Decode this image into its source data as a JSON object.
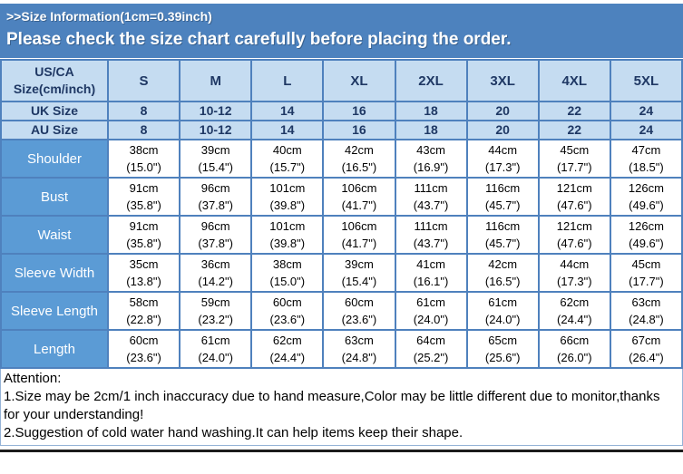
{
  "banner": {
    "warning": "Please check the size chart carefully before placing the order."
  },
  "chart_data": {
    "type": "table",
    "title": ">>Size Information(1cm=0.39inch)",
    "corner_header_lines": [
      "US/CA",
      "Size(cm/inch)"
    ],
    "columns": [
      "S",
      "M",
      "L",
      "XL",
      "2XL",
      "3XL",
      "4XL",
      "5XL"
    ],
    "intl_rows": [
      {
        "label": "UK Size",
        "values": [
          "8",
          "10-12",
          "14",
          "16",
          "18",
          "20",
          "22",
          "24"
        ]
      },
      {
        "label": "AU Size",
        "values": [
          "8",
          "10-12",
          "14",
          "16",
          "18",
          "20",
          "22",
          "24"
        ]
      }
    ],
    "measurement_rows": [
      {
        "label": "Shoulder",
        "cm": [
          "38cm",
          "39cm",
          "40cm",
          "42cm",
          "43cm",
          "44cm",
          "45cm",
          "47cm"
        ],
        "inch": [
          "(15.0\")",
          "(15.4\")",
          "(15.7\")",
          "(16.5\")",
          "(16.9\")",
          "(17.3\")",
          "(17.7\")",
          "(18.5\")"
        ]
      },
      {
        "label": "Bust",
        "cm": [
          "91cm",
          "96cm",
          "101cm",
          "106cm",
          "111cm",
          "116cm",
          "121cm",
          "126cm"
        ],
        "inch": [
          "(35.8\")",
          "(37.8\")",
          "(39.8\")",
          "(41.7\")",
          "(43.7\")",
          "(45.7\")",
          "(47.6\")",
          "(49.6\")"
        ]
      },
      {
        "label": "Waist",
        "cm": [
          "91cm",
          "96cm",
          "101cm",
          "106cm",
          "111cm",
          "116cm",
          "121cm",
          "126cm"
        ],
        "inch": [
          "(35.8\")",
          "(37.8\")",
          "(39.8\")",
          "(41.7\")",
          "(43.7\")",
          "(45.7\")",
          "(47.6\")",
          "(49.6\")"
        ]
      },
      {
        "label": "Sleeve Width",
        "cm": [
          "35cm",
          "36cm",
          "38cm",
          "39cm",
          "41cm",
          "42cm",
          "44cm",
          "45cm"
        ],
        "inch": [
          "(13.8\")",
          "(14.2\")",
          "(15.0\")",
          "(15.4\")",
          "(16.1\")",
          "(16.5\")",
          "(17.3\")",
          "(17.7\")"
        ]
      },
      {
        "label": "Sleeve Length",
        "cm": [
          "58cm",
          "59cm",
          "60cm",
          "60cm",
          "61cm",
          "61cm",
          "62cm",
          "63cm"
        ],
        "inch": [
          "(22.8\")",
          "(23.2\")",
          "(23.6\")",
          "(23.6\")",
          "(24.0\")",
          "(24.0\")",
          "(24.4\")",
          "(24.8\")"
        ]
      },
      {
        "label": "Length",
        "cm": [
          "60cm",
          "61cm",
          "62cm",
          "63cm",
          "64cm",
          "65cm",
          "66cm",
          "67cm"
        ],
        "inch": [
          "(23.6\")",
          "(24.0\")",
          "(24.4\")",
          "(24.8\")",
          "(25.2\")",
          "(25.6\")",
          "(26.0\")",
          "(26.4\")"
        ]
      }
    ]
  },
  "attention": {
    "heading": "Attention:",
    "notes": [
      "1.Size may be 2cm/1 inch inaccuracy due to hand measure,Color may be little different due to monitor,thanks for your understanding!",
      "2.Suggestion of cold water hand washing.It can help items keep their shape."
    ]
  },
  "colors": {
    "banner_blue": "#4D82BE",
    "header_light_blue": "#C5DCF1",
    "row_label_blue": "#5B9BD5",
    "border_blue": "#4F81BD",
    "header_text_navy": "#1F3864",
    "bottom_rule_dark": "#1c1c1c"
  }
}
